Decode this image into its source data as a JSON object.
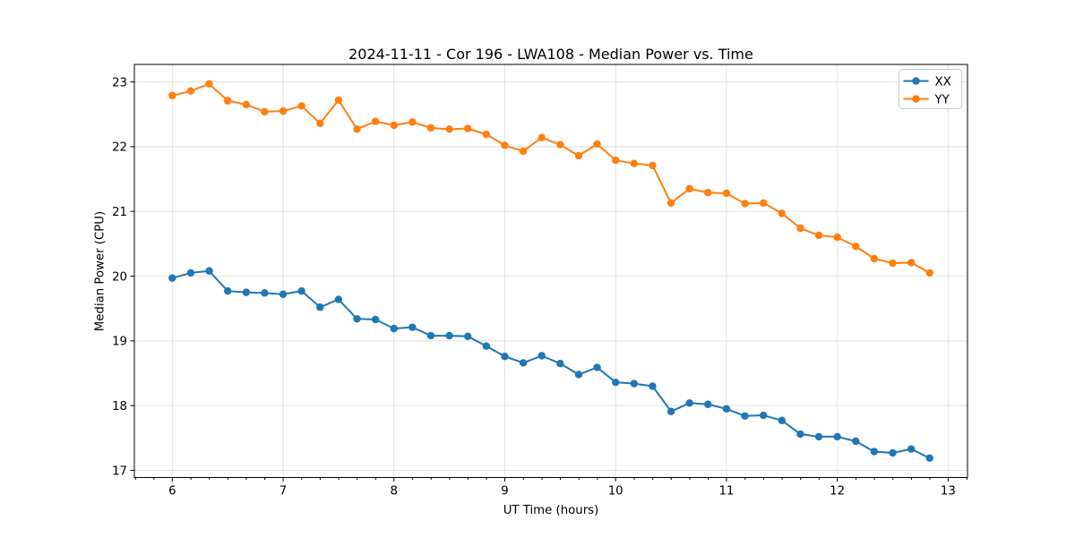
{
  "chart_data": {
    "type": "line",
    "title": "2024-11-11 - Cor 196 - LWA108 - Median Power vs. Time",
    "xlabel": "UT Time (hours)",
    "ylabel": "Median Power (CPU)",
    "xlim": [
      5.658,
      13.175
    ],
    "ylim": [
      16.89,
      23.27
    ],
    "xticks": [
      6,
      7,
      8,
      9,
      10,
      11,
      12,
      13
    ],
    "yticks": [
      17,
      18,
      19,
      20,
      21,
      22,
      23
    ],
    "x_minor_step": 0.1667,
    "grid": true,
    "grid_color": "#dedede",
    "spine_color": "#000000",
    "legend_position": "upper right",
    "marker": "circle",
    "x": [
      6,
      6.1667,
      6.3333,
      6.5,
      6.6667,
      6.8333,
      7,
      7.1667,
      7.3333,
      7.5,
      7.6667,
      7.8333,
      8,
      8.1667,
      8.3333,
      8.5,
      8.6667,
      8.8333,
      9,
      9.1667,
      9.3333,
      9.5,
      9.6667,
      9.8333,
      10,
      10.1667,
      10.3333,
      10.5,
      10.6667,
      10.8333,
      11,
      11.1667,
      11.3333,
      11.5,
      11.6667,
      11.8333,
      12,
      12.1667,
      12.3333,
      12.5,
      12.6667,
      12.8333
    ],
    "series": [
      {
        "name": "XX",
        "color": "#1f77b4",
        "values": [
          19.97,
          20.05,
          20.08,
          19.77,
          19.75,
          19.74,
          19.72,
          19.77,
          19.52,
          19.64,
          19.34,
          19.33,
          19.19,
          19.21,
          19.08,
          19.08,
          19.07,
          18.92,
          18.76,
          18.66,
          18.77,
          18.65,
          18.48,
          18.59,
          18.36,
          18.34,
          18.3,
          17.91,
          18.04,
          18.02,
          17.95,
          17.84,
          17.85,
          17.77,
          17.56,
          17.52,
          17.52,
          17.45,
          17.29,
          17.27,
          17.33,
          17.19
        ]
      },
      {
        "name": "YY",
        "color": "#ff7f0e",
        "values": [
          22.79,
          22.86,
          22.97,
          22.71,
          22.65,
          22.54,
          22.55,
          22.63,
          22.36,
          22.72,
          22.27,
          22.39,
          22.33,
          22.38,
          22.29,
          22.27,
          22.28,
          22.19,
          22.02,
          21.93,
          22.14,
          22.03,
          21.86,
          22.04,
          21.79,
          21.74,
          21.71,
          21.13,
          21.35,
          21.29,
          21.28,
          21.12,
          21.13,
          20.97,
          20.74,
          20.63,
          20.6,
          20.46,
          20.27,
          20.2,
          20.21,
          20.05
        ]
      }
    ]
  }
}
